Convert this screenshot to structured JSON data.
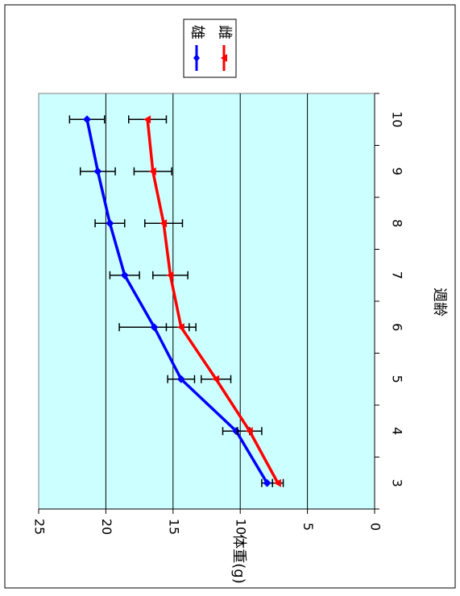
{
  "chart_data": {
    "type": "line",
    "orientation": "rotated-90-clockwise",
    "xlabel": "週齢",
    "ylabel": "体重(g)",
    "categories": [
      "3",
      "4",
      "5",
      "6",
      "7",
      "8",
      "9",
      "10"
    ],
    "x": [
      3,
      4,
      5,
      6,
      7,
      8,
      9,
      10
    ],
    "xlim": [
      2.5,
      10.5
    ],
    "ylim": [
      0,
      25
    ],
    "yticks": [
      "0",
      "5",
      "10",
      "15",
      "20",
      "25"
    ],
    "grid": true,
    "legend": "top-right",
    "plot_background": "#ccffff",
    "series": [
      {
        "name": "雄",
        "color": "#0000ff",
        "marker": "diamond",
        "values": [
          8.0,
          10.3,
          14.4,
          16.4,
          18.6,
          19.7,
          20.6,
          21.4
        ],
        "err": [
          0.4,
          1.0,
          1.0,
          2.6,
          1.1,
          1.1,
          1.3,
          1.3
        ]
      },
      {
        "name": "雌",
        "color": "#ff0000",
        "marker": "triangle",
        "values": [
          7.2,
          9.3,
          11.8,
          14.4,
          15.2,
          15.7,
          16.5,
          16.9
        ],
        "err": [
          0.4,
          0.9,
          1.1,
          1.1,
          1.3,
          1.4,
          1.4,
          1.4
        ]
      }
    ]
  }
}
